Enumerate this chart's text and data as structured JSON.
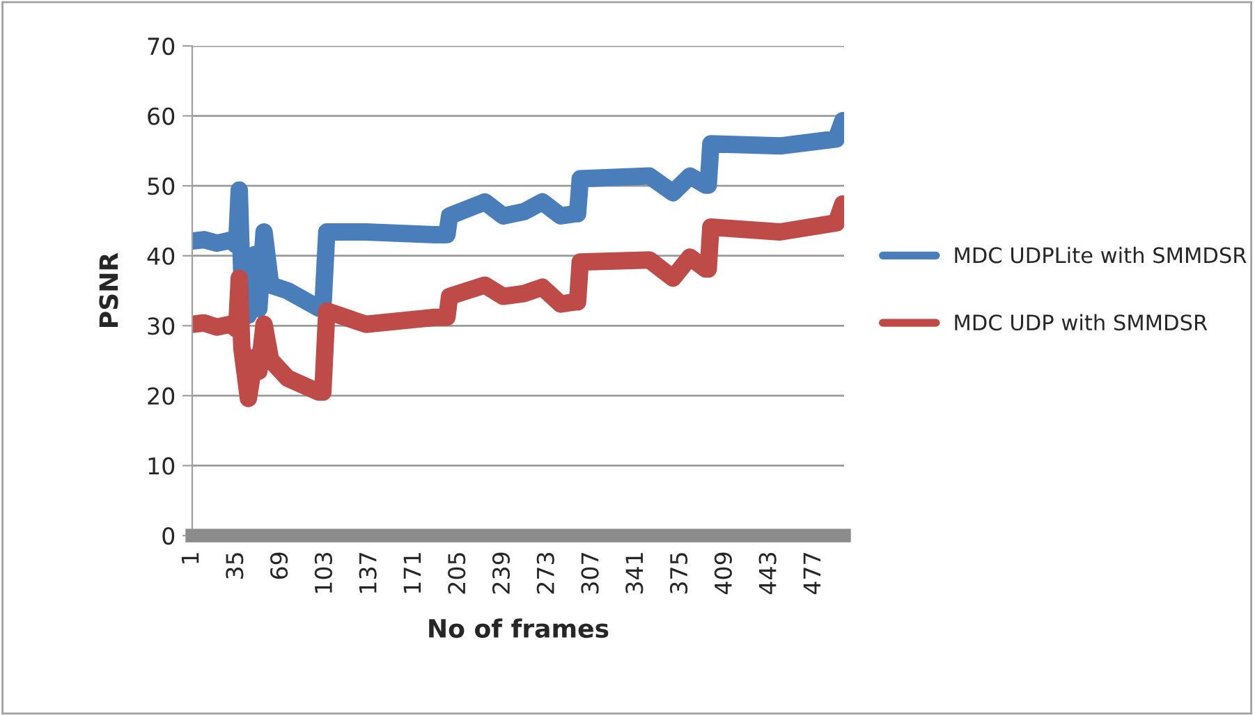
{
  "chart_data": {
    "type": "line",
    "xlabel": "No of frames",
    "ylabel": "PSNR",
    "xlim": [
      1,
      500
    ],
    "xticks": [
      1,
      35,
      69,
      103,
      137,
      171,
      205,
      239,
      273,
      307,
      341,
      375,
      409,
      443,
      477
    ],
    "ylim": [
      0,
      70
    ],
    "yticks": [
      0,
      10,
      20,
      30,
      40,
      50,
      60,
      70
    ],
    "grid": "y",
    "legend": "right",
    "marker": "none",
    "line_style": "solid",
    "series": [
      {
        "name": "MDC UDPLite with SMMDSR",
        "color": "#4a7ebb",
        "x": [
          1,
          10,
          20,
          30,
          35,
          37,
          39,
          44,
          49,
          52,
          56,
          61,
          74,
          98,
          101,
          104,
          134,
          187,
          196,
          198,
          225,
          239,
          255,
          269,
          283,
          294,
          296,
          298,
          351,
          369,
          382,
          394,
          396,
          398,
          451,
          494,
          499
        ],
        "values": [
          42.1,
          42.3,
          41.8,
          42.2,
          41.5,
          49.4,
          37,
          31.5,
          40.2,
          32.4,
          43.4,
          35.8,
          35,
          32.5,
          32.5,
          43.4,
          43.4,
          43,
          43,
          45.7,
          47.7,
          45.7,
          46.3,
          47.7,
          45.7,
          46,
          46,
          51,
          51.4,
          49,
          51.4,
          50.1,
          50.1,
          56,
          55.7,
          56.7,
          59.3
        ]
      },
      {
        "name": "MDC UDP with SMMDSR",
        "color": "#be4b48",
        "x": [
          1,
          10,
          20,
          30,
          35,
          37,
          39,
          44,
          49,
          52,
          56,
          61,
          74,
          98,
          101,
          104,
          134,
          187,
          196,
          198,
          225,
          239,
          255,
          269,
          283,
          294,
          296,
          298,
          351,
          369,
          382,
          394,
          396,
          398,
          451,
          494,
          499
        ],
        "values": [
          30.2,
          30.4,
          29.8,
          30.2,
          29.5,
          36.8,
          26.8,
          19.6,
          25.5,
          23.5,
          30.2,
          25.1,
          22.5,
          20.5,
          20.5,
          32.1,
          30.2,
          31.2,
          31.2,
          34.2,
          35.8,
          34.2,
          34.6,
          35.5,
          33.1,
          33.4,
          33.4,
          39.1,
          39.4,
          36.8,
          39.8,
          38.1,
          38.1,
          44.1,
          43.4,
          44.7,
          47.4
        ]
      }
    ]
  }
}
